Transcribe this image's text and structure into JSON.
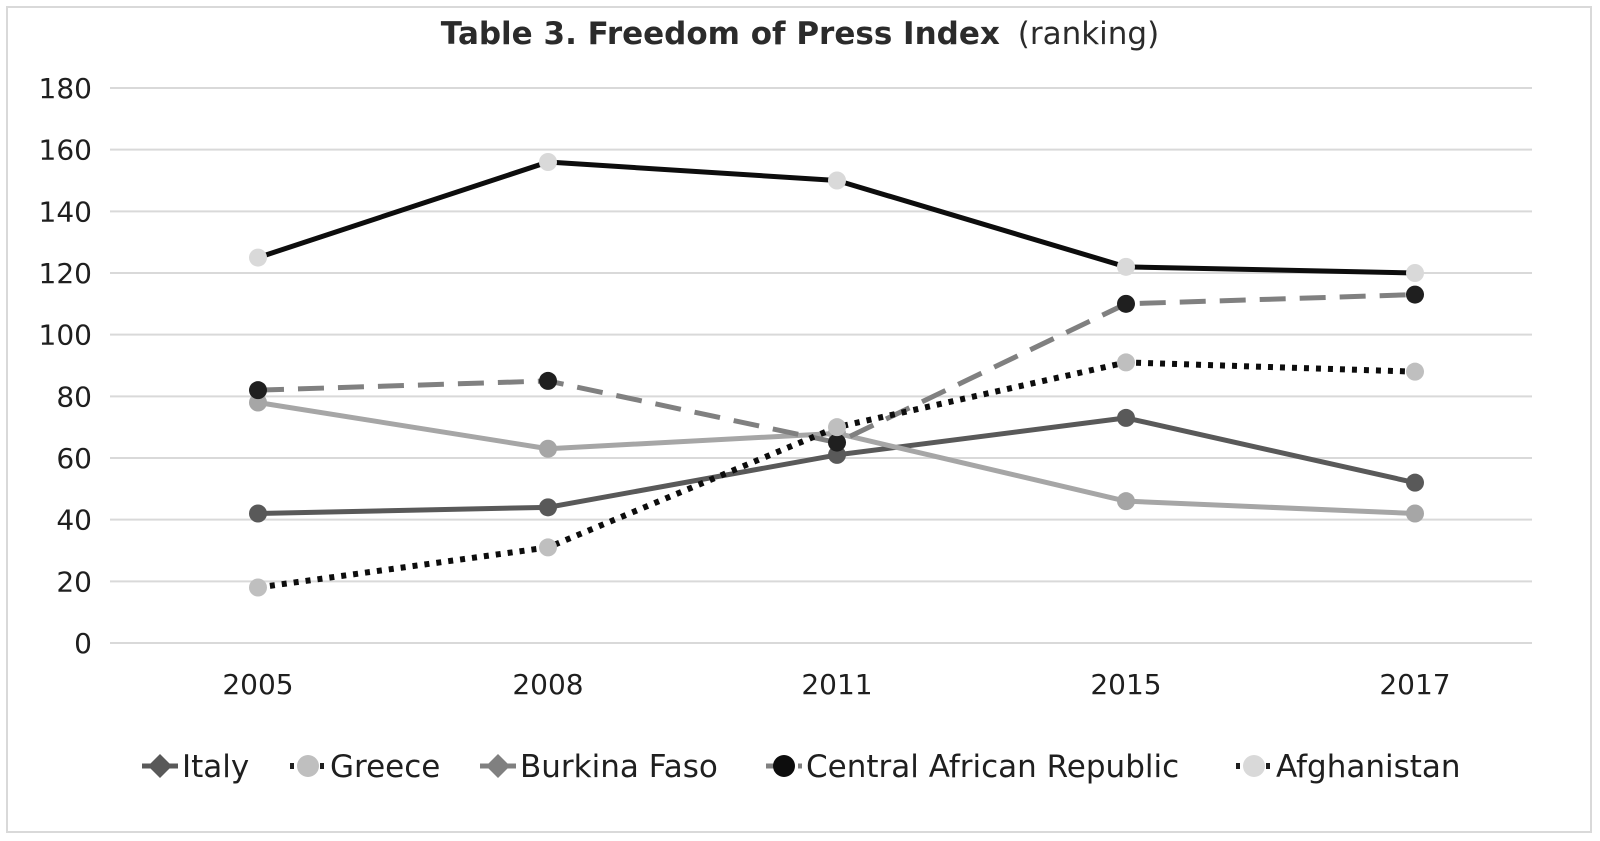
{
  "chart_data": {
    "type": "line",
    "title_main": "Table 3. Freedom of Press Index",
    "title_suffix": "(ranking)",
    "xlabel": "",
    "ylabel": "",
    "categories": [
      "2005",
      "2008",
      "2011",
      "2015",
      "2017"
    ],
    "ylim": [
      0,
      180
    ],
    "yticks": [
      0,
      20,
      40,
      60,
      80,
      100,
      120,
      140,
      160,
      180
    ],
    "grid": true,
    "legend_position": "bottom",
    "series": [
      {
        "name": "Italy",
        "values": [
          42,
          44,
          61,
          73,
          52
        ],
        "line_color": "#595959",
        "marker_color": "#595959",
        "line_style": "solid",
        "marker": "diamond"
      },
      {
        "name": "Greece",
        "values": [
          78,
          63,
          68,
          46,
          42
        ],
        "line_color": "#a6a6a6",
        "marker_color": "#a6a6a6",
        "line_style": "solid",
        "marker": "circle"
      },
      {
        "name": "Burkina Faso",
        "values": [
          82,
          85,
          65,
          110,
          113
        ],
        "line_color": "#808080",
        "marker_color": "#1f1f1f",
        "line_style": "dashed",
        "marker": "circle"
      },
      {
        "name": "Central African Republic",
        "values": [
          125,
          156,
          150,
          122,
          120
        ],
        "line_color": "#0d0d0d",
        "marker_color": "#d9d9d9",
        "line_style": "solid",
        "marker": "circle"
      },
      {
        "name": "Afghanistan",
        "values": [
          18,
          31,
          70,
          91,
          88
        ],
        "line_color": "#0d0d0d",
        "marker_color": "#bfbfbf",
        "line_style": "dotted",
        "marker": "circle"
      }
    ],
    "legend_markers": [
      {
        "series": "Italy",
        "line_color": "#595959",
        "line_style": "solid",
        "marker_color": "#595959",
        "marker": "diamond"
      },
      {
        "series": "Greece",
        "line_color": "#1f1f1f",
        "line_style": "dotted",
        "marker_color": "#bfbfbf",
        "marker": "circle"
      },
      {
        "series": "Burkina Faso",
        "line_color": "#808080",
        "line_style": "solid",
        "marker_color": "#808080",
        "marker": "diamond"
      },
      {
        "series": "Central African Republic",
        "line_color": "#808080",
        "line_style": "dashed",
        "marker_color": "#0d0d0d",
        "marker": "circle"
      },
      {
        "series": "Afghanistan",
        "line_color": "#1f1f1f",
        "line_style": "dotted",
        "marker_color": "#d9d9d9",
        "marker": "circle"
      }
    ],
    "gridline_color": "#d9d9d9"
  }
}
